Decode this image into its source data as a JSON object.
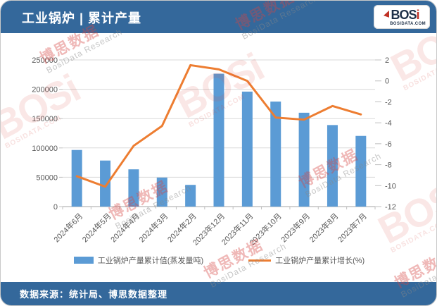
{
  "header": {
    "title": "工业锅炉 | 累计产量",
    "logo": {
      "main": "BOS",
      "accent": "i",
      "domain": "BOSIDATA.COM"
    }
  },
  "watermark": {
    "cn": "博思数据",
    "en": "BosiData Research",
    "logo": "BOSi",
    "domain": "BOSIDATA.COM"
  },
  "chart_data": {
    "type": "bar",
    "subtype": "bar+line dual-axis combo",
    "categories": [
      "2024年6月",
      "2024年5月",
      "2024年4月",
      "2024年3月",
      "2024年2月",
      "2023年12月",
      "2023年11月",
      "2023年10月",
      "2023年9月",
      "2023年8月",
      "2023年7月"
    ],
    "series": [
      {
        "name": "工业锅炉产量累计值(蒸发量吨)",
        "type": "bar",
        "axis": "left",
        "color": "#5B9BD5",
        "values": [
          96500,
          78500,
          63500,
          49500,
          37000,
          226500,
          196000,
          179000,
          160000,
          139000,
          120500
        ]
      },
      {
        "name": "工业锅炉产量累计增长(%)",
        "type": "line",
        "axis": "right",
        "color": "#ED7D31",
        "values": [
          -9.1,
          -10.1,
          -6.2,
          -4.3,
          1.5,
          1.1,
          0.0,
          -3.5,
          -3.7,
          -2.4,
          -3.2
        ]
      }
    ],
    "left_axis": {
      "min": 0,
      "max": 250000,
      "step": 50000
    },
    "right_axis": {
      "min": -12,
      "max": 2,
      "step": 2
    },
    "grid": true,
    "legend_position": "bottom"
  },
  "footer": {
    "source": "数据来源：统计局、博思数据整理"
  }
}
